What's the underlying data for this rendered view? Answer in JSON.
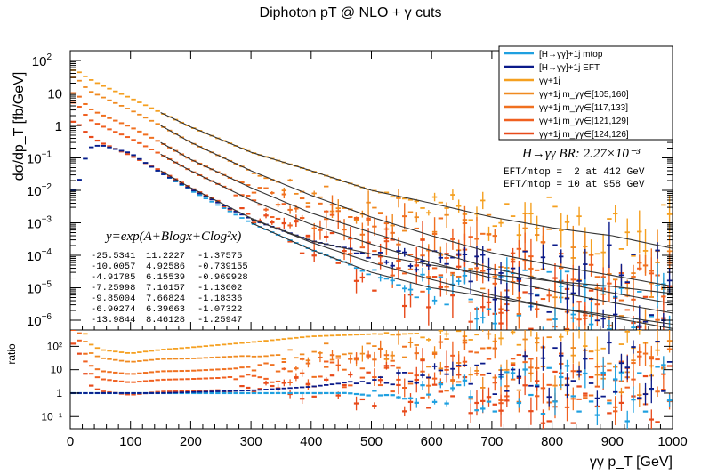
{
  "chart_data": {
    "type": "line",
    "title": "Diphoton pT @ NLO + γ cuts",
    "xlabel": "γγ p_T [GeV]",
    "ylabel": "dσ/dp_T  [fb/GeV]",
    "ratio_ylabel": "ratio",
    "xlim": [
      0,
      1000
    ],
    "ylim": [
      5e-07,
      200
    ],
    "ratio_ylim": [
      0.03,
      500
    ],
    "log_y": true,
    "grid": false,
    "legend_position": "top-right",
    "x_ticks": [
      "0",
      "100",
      "200",
      "300",
      "400",
      "500",
      "600",
      "700",
      "800",
      "900",
      "1000"
    ],
    "y_ticks": [
      {
        "base": "10",
        "exp": "2"
      },
      {
        "base": "10",
        "exp": ""
      },
      {
        "base": "1",
        "exp": ""
      },
      {
        "base": "10",
        "exp": "−1"
      },
      {
        "base": "10",
        "exp": "−2"
      },
      {
        "base": "10",
        "exp": "−3"
      },
      {
        "base": "10",
        "exp": "−4"
      },
      {
        "base": "10",
        "exp": "−5"
      },
      {
        "base": "10",
        "exp": "−6"
      }
    ],
    "ratio_ticks": [
      "10²",
      "10",
      "1",
      "10⁻¹"
    ],
    "br_label": "H→γγ BR: 2.27×10⁻³",
    "eft_notes": [
      "EFT/mtop =  2 at 412 GeV",
      "EFT/mtop = 10 at 958 GeV"
    ],
    "fit_formula": "y=exp(A+Blogx+Clog²x)",
    "fit_params": [
      [
        "-25.5341",
        "11.2227",
        "-1.37575"
      ],
      [
        "-10.0057",
        "4.92586",
        "-0.739155"
      ],
      [
        "-4.91785",
        "6.15539",
        "-0.969928"
      ],
      [
        "-7.25998",
        "7.16157",
        "-1.13602"
      ],
      [
        "-9.85004",
        "7.66824",
        "-1.18336"
      ],
      [
        "-6.90274",
        "6.39663",
        "-1.07322"
      ],
      [
        "-13.9844",
        "8.46128",
        "-1.25947"
      ]
    ],
    "series": [
      {
        "name": "[H→γγ]+1j mtop",
        "color": "#1fa0e0",
        "x": [
          10,
          30,
          50,
          100,
          150,
          200,
          300,
          400,
          500,
          600,
          700,
          800,
          900,
          990
        ],
        "y": [
          0.01,
          0.2,
          0.25,
          0.14,
          0.035,
          0.01,
          0.001,
          0.00015,
          3e-05,
          1e-05,
          5e-06,
          2.5e-06,
          1.4e-06,
          8e-07
        ]
      },
      {
        "name": "[H→γγ]+1j EFT",
        "color": "#0a1a8a",
        "x": [
          10,
          30,
          50,
          100,
          150,
          200,
          300,
          400,
          500,
          600,
          700,
          800,
          900,
          990
        ],
        "y": [
          0.01,
          0.2,
          0.25,
          0.14,
          0.035,
          0.011,
          0.0013,
          0.00028,
          0.00011,
          5e-05,
          2.6e-05,
          1.6e-05,
          1.1e-05,
          7e-06
        ]
      },
      {
        "name": "γγ+1j",
        "color": "#f5a020",
        "x": [
          10,
          30,
          50,
          100,
          150,
          200,
          300,
          400,
          500,
          600,
          700,
          800,
          900,
          990
        ],
        "y": [
          50,
          28,
          18,
          7,
          2.5,
          0.9,
          0.15,
          0.04,
          0.01,
          0.004,
          0.0015,
          0.0007,
          0.0004,
          0.00018
        ]
      },
      {
        "name": "γγ+1j m_γγ∈[105,160]",
        "color": "#f08a20",
        "x": [
          10,
          30,
          50,
          100,
          150,
          200,
          300,
          400,
          500,
          600,
          700,
          800,
          900,
          990
        ],
        "y": [
          30,
          12,
          8,
          3,
          1,
          0.3,
          0.04,
          0.007,
          0.0015,
          0.0004,
          0.00012,
          5e-05,
          2.4e-05,
          1.2e-05
        ]
      },
      {
        "name": "γγ+1j m_γγ∈[117,133]",
        "color": "#f07020",
        "x": [
          10,
          30,
          50,
          100,
          150,
          200,
          300,
          400,
          500,
          600,
          700,
          800,
          900,
          990
        ],
        "y": [
          10,
          3.5,
          2.2,
          0.9,
          0.3,
          0.09,
          0.012,
          0.002,
          0.0005,
          0.00014,
          4e-05,
          1.6e-05,
          7e-06,
          3.5e-06
        ]
      },
      {
        "name": "γγ+1j m_γγ∈[121,129]",
        "color": "#f06020",
        "x": [
          10,
          30,
          50,
          100,
          150,
          200,
          300,
          400,
          500,
          600,
          700,
          800,
          900,
          990
        ],
        "y": [
          5,
          1.6,
          1,
          0.4,
          0.13,
          0.04,
          0.005,
          0.0009,
          0.00022,
          6e-05,
          2e-05,
          8e-06,
          3.5e-06,
          1.8e-06
        ]
      },
      {
        "name": "γγ+1j m_γγ∈[124,126]",
        "color": "#e84a1a",
        "x": [
          10,
          30,
          50,
          100,
          150,
          200,
          300,
          400,
          500,
          600,
          700,
          800,
          900,
          990
        ],
        "y": [
          1.3,
          0.5,
          0.3,
          0.12,
          0.04,
          0.012,
          0.0014,
          0.00025,
          6e-05,
          1.8e-05,
          6e-06,
          2.5e-06,
          1.2e-06,
          6e-07
        ]
      }
    ],
    "fits": [
      {
        "series": "γγ+1j",
        "x": [
          150,
          1000
        ]
      },
      {
        "series": "γγ+1j m_γγ∈[105,160]",
        "x": [
          150,
          1000
        ]
      },
      {
        "series": "γγ+1j m_γγ∈[117,133]",
        "x": [
          150,
          1000
        ]
      },
      {
        "series": "γγ+1j m_γγ∈[121,129]",
        "x": [
          150,
          1000
        ]
      },
      {
        "series": "γγ+1j m_γγ∈[124,126]",
        "x": [
          150,
          1000
        ]
      },
      {
        "series": "[H→γγ]+1j EFT",
        "x": [
          300,
          1000
        ]
      },
      {
        "series": "[H→γγ]+1j mtop",
        "x": [
          300,
          1000
        ]
      }
    ]
  }
}
